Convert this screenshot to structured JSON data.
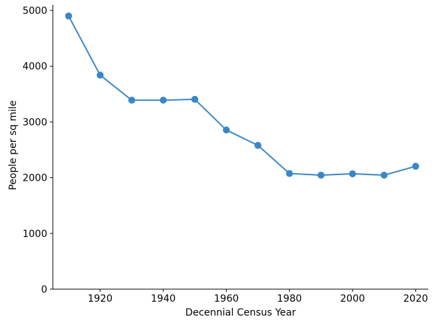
{
  "chart_data": {
    "type": "line",
    "x": [
      1910,
      1920,
      1930,
      1940,
      1950,
      1960,
      1970,
      1980,
      1990,
      2000,
      2010,
      2020
    ],
    "values": [
      4900,
      3840,
      3390,
      3390,
      3405,
      2855,
      2580,
      2075,
      2045,
      2070,
      2045,
      2205
    ],
    "xlabel": "Decennial Census Year",
    "ylabel": "People per sq mile",
    "xlim": [
      1905,
      2024
    ],
    "ylim": [
      0,
      5100
    ],
    "xticks": [
      1920,
      1940,
      1960,
      1980,
      2000,
      2020
    ],
    "yticks": [
      0,
      1000,
      2000,
      3000,
      4000,
      5000
    ],
    "grid": false,
    "legend": "none",
    "marker": "circle",
    "line_color": "#3a87c8",
    "marker_color": "#3a87c8",
    "axis_color": "#000000",
    "background_color": "#ffffff"
  }
}
